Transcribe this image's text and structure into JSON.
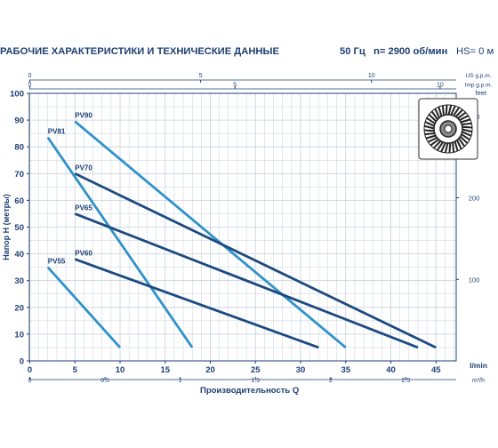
{
  "header": {
    "title": "РАБОЧИЕ ХАРАКТЕРИСТИКИ И ТЕХНИЧЕСКИЕ ДАННЫЕ",
    "freq": "50 Гц",
    "speed": "n= 2900 об/мин",
    "hs": "HS= 0 м"
  },
  "colors": {
    "dark_blue": "#1d4a80",
    "light_blue": "#2f92c9",
    "axis": "#1d3f73",
    "grid": "#c5d1dc"
  },
  "chart_data": {
    "type": "line",
    "title": "",
    "xlabel": "Производительность Q",
    "ylabel": "Напор H (метры)",
    "xlim": [
      0,
      47
    ],
    "ylim": [
      0,
      100
    ],
    "x_unit": "l/min",
    "right_axis_unit": "feet",
    "grid": true,
    "bottom_axis": {
      "unit": "l/min",
      "ticks": [
        0,
        5,
        10,
        15,
        20,
        25,
        30,
        35,
        40,
        45
      ],
      "labels": [
        "0",
        "5",
        "10",
        "15",
        "20",
        "25",
        "30",
        "35",
        "40",
        "45"
      ]
    },
    "m3h_axis": {
      "unit": "m³/h",
      "ticks": [
        0,
        0.5,
        1,
        1.5,
        2,
        2.5
      ],
      "labels": [
        "0",
        "0.5",
        "1",
        "1.5",
        "2",
        "2.5"
      ]
    },
    "us_gpm_axis": {
      "unit": "US g.p.m.",
      "ticks": [
        0,
        5,
        10
      ],
      "labels": [
        "0",
        "5",
        "10"
      ]
    },
    "imp_gpm_axis": {
      "unit": "Imp g.p.m.",
      "ticks": [
        0,
        5,
        10
      ],
      "labels": [
        "0",
        "5",
        "10"
      ]
    },
    "feet_axis": {
      "unit": "feet",
      "ticks": [
        100,
        200,
        300
      ],
      "labels": [
        "100",
        "200",
        "300"
      ]
    },
    "left_axis": {
      "ticks": [
        0,
        10,
        20,
        30,
        40,
        50,
        60,
        70,
        80,
        90,
        100
      ],
      "labels": [
        "0",
        "10",
        "20",
        "30",
        "40",
        "50",
        "60",
        "70",
        "80",
        "90",
        "100"
      ]
    },
    "series": [
      {
        "name": "PV90",
        "color": "light",
        "x": [
          5,
          35
        ],
        "y": [
          89.5,
          5
        ]
      },
      {
        "name": "PV81",
        "color": "light",
        "x": [
          2,
          18
        ],
        "y": [
          83.5,
          5
        ]
      },
      {
        "name": "PV70",
        "color": "dark",
        "x": [
          5,
          45
        ],
        "y": [
          70,
          5
        ]
      },
      {
        "name": "PV65",
        "color": "dark",
        "x": [
          5,
          43
        ],
        "y": [
          55,
          5
        ]
      },
      {
        "name": "PV60",
        "color": "dark",
        "x": [
          5,
          32
        ],
        "y": [
          38,
          5
        ]
      },
      {
        "name": "PV55",
        "color": "light",
        "x": [
          2,
          10
        ],
        "y": [
          35,
          5
        ]
      }
    ]
  }
}
